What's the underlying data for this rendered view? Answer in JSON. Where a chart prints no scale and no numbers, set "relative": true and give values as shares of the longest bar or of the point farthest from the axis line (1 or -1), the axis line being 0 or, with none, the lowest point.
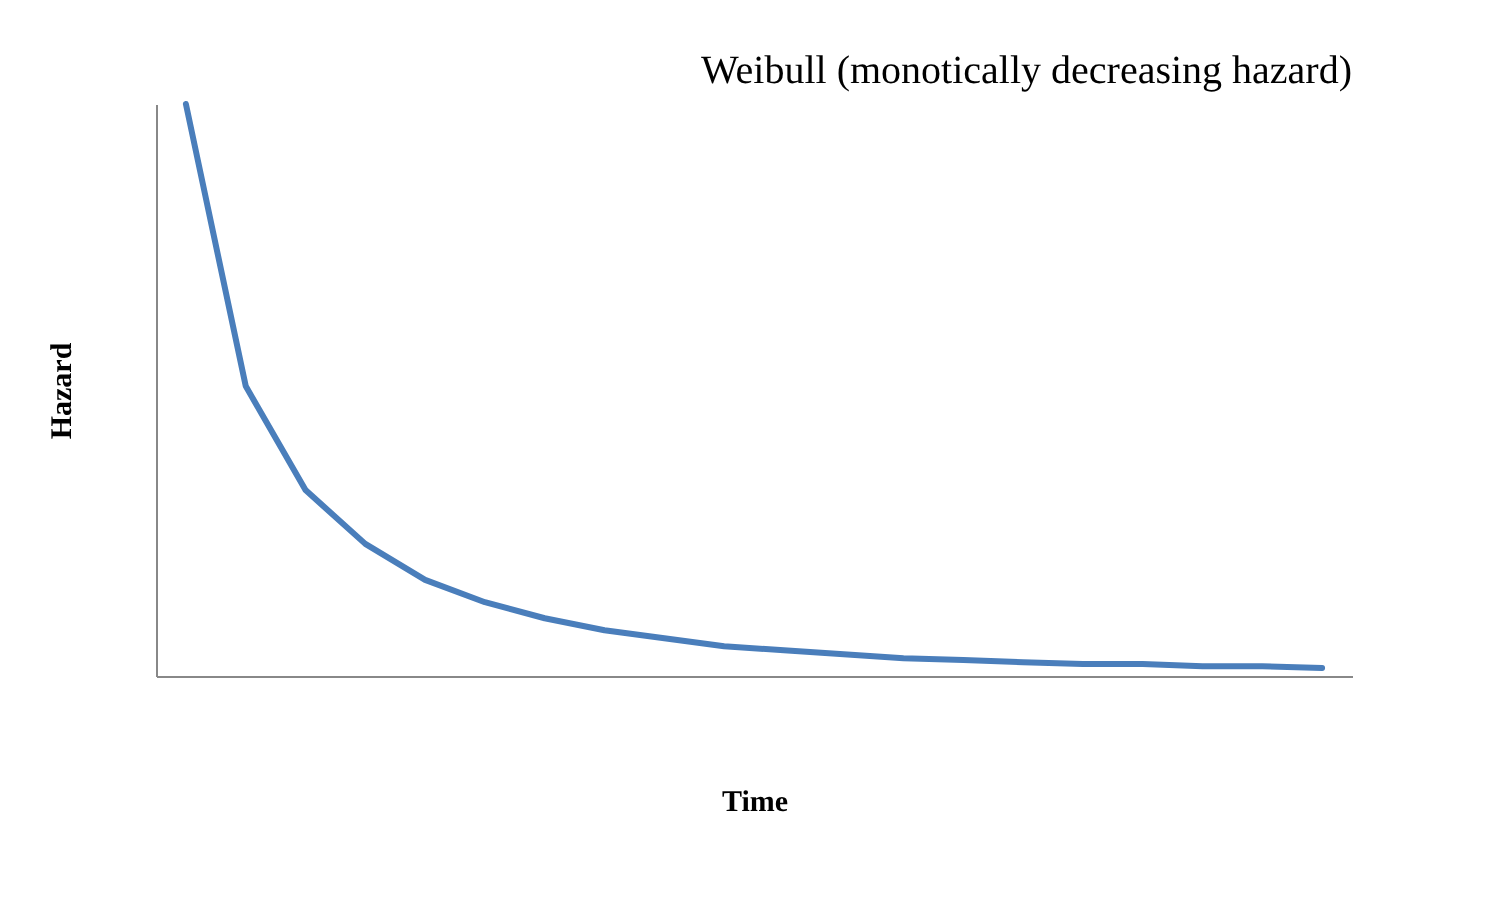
{
  "chart_data": {
    "type": "line",
    "title": "Weibull (monotically decreasing hazard)",
    "xlabel": "Time",
    "ylabel": "Hazard",
    "relative": true,
    "tick_labels": false,
    "categories": [
      null,
      null,
      null,
      null,
      null,
      null,
      null,
      null,
      null,
      null,
      null,
      null,
      null,
      null,
      null,
      null,
      null,
      null,
      null,
      null
    ],
    "series": [
      {
        "color": "#4a7ebb",
        "values": [
          1,
          0.507,
          0.325,
          0.231,
          0.168,
          0.129,
          0.101,
          0.08,
          0.066,
          0.052,
          0.045,
          0.038,
          0.031,
          0.028,
          0.024,
          0.021,
          0.021,
          0.017,
          0.017,
          0.014
        ]
      }
    ]
  }
}
